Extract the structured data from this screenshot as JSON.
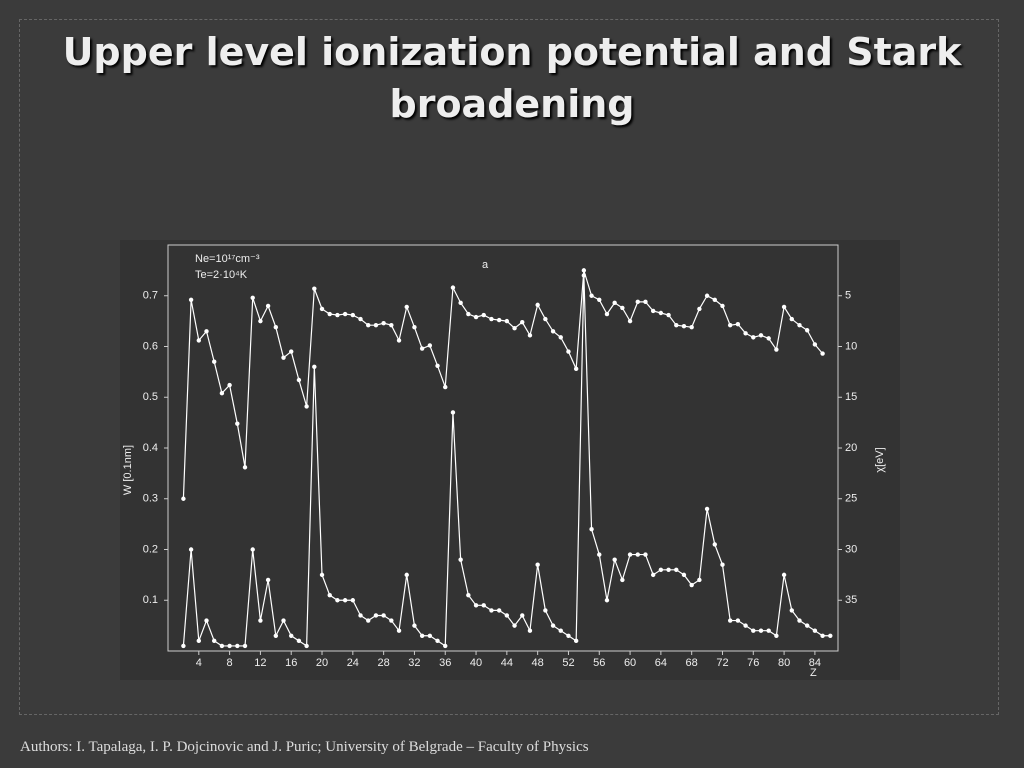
{
  "slide": {
    "title": "Upper level ionization potential and Stark broadening",
    "footer": "Authors: I. Tapalaga, I. P. Dojcinovic and J. Puric; University of Belgrade – Faculty of Physics"
  },
  "chart_data": {
    "type": "line",
    "annotations": [
      "Ne=10¹⁷cm⁻³",
      "Te=2·10⁴K",
      "a"
    ],
    "x_label": "Z",
    "y_label": "W [0.1nm]",
    "y2_label": "χ[eV]",
    "x": [
      2,
      3,
      4,
      5,
      6,
      7,
      8,
      9,
      10,
      11,
      12,
      13,
      14,
      15,
      16,
      17,
      18,
      19,
      20,
      21,
      22,
      23,
      24,
      25,
      26,
      27,
      28,
      29,
      30,
      31,
      32,
      33,
      34,
      35,
      36,
      37,
      38,
      39,
      40,
      41,
      42,
      43,
      44,
      45,
      46,
      47,
      48,
      49,
      50,
      51,
      52,
      53,
      54,
      55,
      56,
      57,
      58,
      59,
      60,
      61,
      62,
      63,
      64,
      65,
      66,
      67,
      68,
      69,
      70,
      71,
      72,
      73,
      74,
      75,
      76,
      77,
      78,
      79,
      80,
      81,
      82,
      83,
      84,
      85,
      86
    ],
    "xlim": [
      0,
      87
    ],
    "xticks": [
      4,
      8,
      12,
      16,
      20,
      24,
      28,
      32,
      36,
      40,
      44,
      48,
      52,
      56,
      60,
      64,
      68,
      72,
      76,
      80,
      84
    ],
    "ylim": [
      0,
      0.8
    ],
    "yticks": [
      0.1,
      0.2,
      0.3,
      0.4,
      0.5,
      0.6,
      0.7
    ],
    "y2lim": [
      40,
      0
    ],
    "y2ticks": [
      5,
      10,
      15,
      20,
      25,
      30,
      35
    ],
    "grid": false,
    "series": [
      {
        "color": "#ffffff",
        "axis": "y2",
        "values": [
          25,
          5.4,
          9.4,
          8.5,
          11.5,
          14.6,
          13.8,
          17.6,
          21.9,
          5.2,
          7.5,
          6.0,
          8.1,
          11.1,
          10.5,
          13.3,
          15.9,
          4.3,
          6.3,
          6.8,
          6.9,
          6.8,
          6.9,
          7.3,
          7.9,
          7.9,
          7.7,
          7.9,
          9.4,
          6.1,
          8.1,
          10.2,
          9.9,
          11.9,
          14.0,
          4.2,
          5.7,
          6.8,
          7.1,
          6.9,
          7.3,
          7.4,
          7.5,
          8.2,
          7.6,
          8.9,
          5.9,
          7.3,
          8.5,
          9.1,
          10.5,
          12.2,
          2.5,
          5.0,
          5.4,
          6.8,
          5.7,
          6.2,
          7.5,
          5.6,
          5.6,
          6.5,
          6.7,
          6.9,
          7.9,
          8.0,
          8.1,
          6.3,
          5.0,
          5.4,
          6.0,
          7.9,
          7.8,
          8.7,
          9.1,
          8.9,
          9.2,
          10.3,
          6.1,
          7.3,
          7.9,
          8.4,
          9.8,
          10.7,
          null
        ]
      },
      {
        "color": "#ffffff",
        "values": [
          0.01,
          0.2,
          0.02,
          0.06,
          0.02,
          0.01,
          0.01,
          0.01,
          0.01,
          0.2,
          0.06,
          0.14,
          0.03,
          0.06,
          0.03,
          0.02,
          0.01,
          0.56,
          0.15,
          0.11,
          0.1,
          0.1,
          0.1,
          0.07,
          0.06,
          0.07,
          0.07,
          0.06,
          0.04,
          0.15,
          0.05,
          0.03,
          0.03,
          0.02,
          0.01,
          0.47,
          0.18,
          0.11,
          0.09,
          0.09,
          0.08,
          0.08,
          0.07,
          0.05,
          0.07,
          0.04,
          0.17,
          0.08,
          0.05,
          0.04,
          0.03,
          0.02,
          0.74,
          0.24,
          0.19,
          0.1,
          0.18,
          0.14,
          0.19,
          0.19,
          0.19,
          0.15,
          0.16,
          0.16,
          0.16,
          0.15,
          0.13,
          0.14,
          0.28,
          0.21,
          0.17,
          0.06,
          0.06,
          0.05,
          0.04,
          0.04,
          0.04,
          0.03,
          0.15,
          0.08,
          0.06,
          0.05,
          0.04,
          0.03,
          0.03
        ]
      }
    ]
  }
}
